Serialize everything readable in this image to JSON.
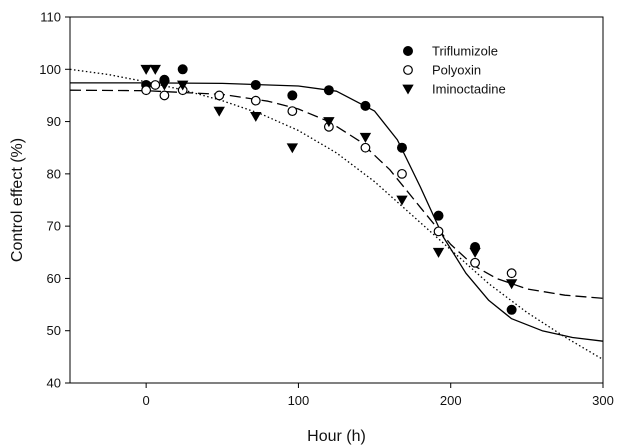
{
  "chart_data": {
    "type": "scatter",
    "xlabel": "Hour (h)",
    "ylabel": "Control effect (%)",
    "xlim": [
      -50,
      300
    ],
    "ylim": [
      40,
      110
    ],
    "xticks": [
      0,
      100,
      200,
      300
    ],
    "yticks": [
      40,
      50,
      60,
      70,
      80,
      90,
      100,
      110
    ],
    "grid": false,
    "legend_position": "top-right",
    "series": [
      {
        "name": "Triflumizole",
        "marker": "filled-circle",
        "color": "#000000",
        "fit_line": "solid",
        "points": [
          [
            0,
            97
          ],
          [
            12,
            98
          ],
          [
            24,
            100
          ],
          [
            72,
            97
          ],
          [
            96,
            95
          ],
          [
            120,
            96
          ],
          [
            144,
            93
          ],
          [
            168,
            85
          ],
          [
            192,
            72
          ],
          [
            216,
            66
          ],
          [
            240,
            54
          ]
        ],
        "fit_curve": [
          [
            -50,
            97.4
          ],
          [
            0,
            97.4
          ],
          [
            50,
            97.3
          ],
          [
            100,
            96.8
          ],
          [
            125,
            95.8
          ],
          [
            150,
            92.0
          ],
          [
            165,
            86.5
          ],
          [
            180,
            77.5
          ],
          [
            195,
            68.0
          ],
          [
            210,
            61.0
          ],
          [
            225,
            55.8
          ],
          [
            240,
            52.3
          ],
          [
            260,
            50.0
          ],
          [
            280,
            48.7
          ],
          [
            300,
            48.0
          ]
        ]
      },
      {
        "name": "Polyoxin",
        "marker": "open-circle",
        "color": "#000000",
        "fit_line": "dashed",
        "points": [
          [
            0,
            96
          ],
          [
            6,
            97
          ],
          [
            12,
            95
          ],
          [
            24,
            96
          ],
          [
            48,
            95
          ],
          [
            72,
            94
          ],
          [
            96,
            92
          ],
          [
            120,
            89
          ],
          [
            144,
            85
          ],
          [
            168,
            80
          ],
          [
            192,
            69
          ],
          [
            216,
            63
          ],
          [
            240,
            61
          ]
        ],
        "fit_curve": [
          [
            -50,
            96.0
          ],
          [
            0,
            95.9
          ],
          [
            50,
            95.2
          ],
          [
            80,
            93.9
          ],
          [
            100,
            92.4
          ],
          [
            120,
            90.0
          ],
          [
            140,
            86.3
          ],
          [
            160,
            80.8
          ],
          [
            180,
            73.6
          ],
          [
            200,
            66.5
          ],
          [
            215,
            62.5
          ],
          [
            230,
            60.0
          ],
          [
            250,
            58.0
          ],
          [
            275,
            56.8
          ],
          [
            300,
            56.2
          ]
        ]
      },
      {
        "name": "Iminoctadine",
        "marker": "filled-triangle-down",
        "color": "#000000",
        "fit_line": "dotted",
        "points": [
          [
            0,
            100
          ],
          [
            6,
            100
          ],
          [
            12,
            97
          ],
          [
            24,
            97
          ],
          [
            48,
            92
          ],
          [
            72,
            91
          ],
          [
            96,
            85
          ],
          [
            120,
            90
          ],
          [
            144,
            87
          ],
          [
            168,
            75
          ],
          [
            192,
            65
          ],
          [
            216,
            65
          ],
          [
            240,
            59
          ]
        ],
        "fit_curve": [
          [
            -50,
            100.0
          ],
          [
            -25,
            99.0
          ],
          [
            0,
            97.6
          ],
          [
            25,
            96.0
          ],
          [
            50,
            94.0
          ],
          [
            75,
            91.5
          ],
          [
            100,
            88.3
          ],
          [
            125,
            84.0
          ],
          [
            150,
            78.5
          ],
          [
            175,
            72.0
          ],
          [
            200,
            65.5
          ],
          [
            225,
            59.0
          ],
          [
            250,
            53.5
          ],
          [
            275,
            48.8
          ],
          [
            300,
            44.5
          ]
        ]
      }
    ]
  }
}
